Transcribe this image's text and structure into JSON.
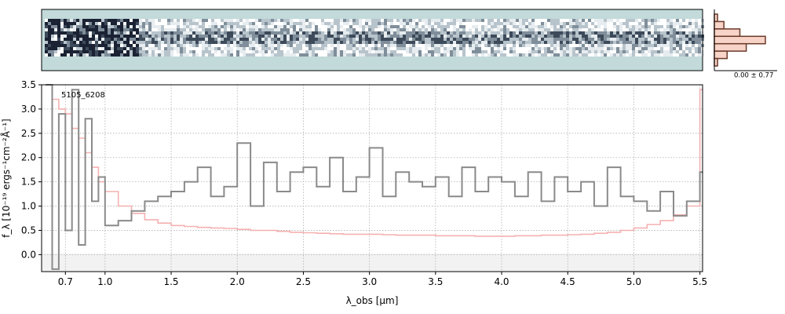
{
  "figure": {
    "object_id": "5105_6208",
    "hist_label": "0.00 ± 0.77"
  },
  "chart_data": {
    "type": "line",
    "xlabel": "λ_obs [μm]",
    "ylabel": "f_λ [10⁻¹⁹ ergs⁻¹cm⁻²Å⁻¹]",
    "xlim": [
      0.52,
      5.52
    ],
    "ylim": [
      -0.35,
      3.5
    ],
    "x_ticks": [
      0.7,
      1.0,
      1.5,
      2.0,
      2.5,
      3.0,
      3.5,
      4.0,
      4.5,
      5.0,
      5.5
    ],
    "x_tick_labels": [
      "0.7",
      "1.0",
      "1.5",
      "2.0",
      "2.5",
      "3.0",
      "3.5",
      "4.0",
      "4.5",
      "5.0",
      "5.5"
    ],
    "y_ticks": [
      0.0,
      0.5,
      1.0,
      1.5,
      2.0,
      2.5,
      3.0,
      3.5
    ],
    "y_tick_labels": [
      "0.0",
      "0.5",
      "1.0",
      "1.5",
      "2.0",
      "2.5",
      "3.0",
      "3.5"
    ],
    "grid": true,
    "series": [
      {
        "role": "flux",
        "color": "#8a8a8a",
        "x": [
          0.55,
          0.6,
          0.65,
          0.7,
          0.75,
          0.8,
          0.85,
          0.9,
          0.95,
          1.0,
          1.1,
          1.2,
          1.3,
          1.4,
          1.5,
          1.6,
          1.7,
          1.8,
          1.9,
          2.0,
          2.1,
          2.2,
          2.3,
          2.4,
          2.5,
          2.6,
          2.7,
          2.8,
          2.9,
          3.0,
          3.1,
          3.2,
          3.3,
          3.4,
          3.5,
          3.6,
          3.7,
          3.8,
          3.9,
          4.0,
          4.1,
          4.2,
          4.3,
          4.4,
          4.5,
          4.6,
          4.7,
          4.8,
          4.9,
          5.0,
          5.1,
          5.2,
          5.3,
          5.4,
          5.5
        ],
        "y": [
          3.5,
          -0.3,
          2.9,
          0.5,
          3.4,
          0.2,
          2.8,
          1.1,
          1.6,
          0.6,
          0.7,
          0.9,
          1.1,
          1.2,
          1.3,
          1.5,
          1.8,
          1.2,
          1.4,
          2.3,
          1.0,
          1.9,
          1.3,
          1.7,
          1.8,
          1.4,
          2.0,
          1.3,
          1.6,
          2.2,
          1.2,
          1.7,
          1.5,
          1.4,
          1.6,
          1.2,
          1.8,
          1.3,
          1.6,
          1.5,
          1.2,
          1.7,
          1.1,
          1.6,
          1.3,
          1.5,
          1.0,
          1.8,
          1.2,
          1.1,
          0.9,
          1.3,
          0.8,
          1.1,
          1.7
        ]
      },
      {
        "role": "error",
        "color": "#f4a8a8",
        "x": [
          0.55,
          0.6,
          0.65,
          0.7,
          0.75,
          0.8,
          0.85,
          0.9,
          0.95,
          1.0,
          1.1,
          1.2,
          1.3,
          1.4,
          1.5,
          1.6,
          1.7,
          1.8,
          1.9,
          2.0,
          2.1,
          2.2,
          2.3,
          2.4,
          2.5,
          2.6,
          2.7,
          2.8,
          2.9,
          3.0,
          3.1,
          3.2,
          3.3,
          3.4,
          3.5,
          3.6,
          3.7,
          3.8,
          3.9,
          4.0,
          4.1,
          4.2,
          4.3,
          4.4,
          4.5,
          4.6,
          4.7,
          4.8,
          4.9,
          5.0,
          5.1,
          5.2,
          5.3,
          5.4,
          5.5
        ],
        "y": [
          3.5,
          3.2,
          3.0,
          2.9,
          2.6,
          2.4,
          2.1,
          1.8,
          1.5,
          1.3,
          1.0,
          0.85,
          0.72,
          0.65,
          0.6,
          0.58,
          0.56,
          0.55,
          0.54,
          0.52,
          0.5,
          0.5,
          0.48,
          0.46,
          0.45,
          0.44,
          0.43,
          0.42,
          0.42,
          0.42,
          0.41,
          0.4,
          0.4,
          0.4,
          0.39,
          0.39,
          0.39,
          0.38,
          0.38,
          0.38,
          0.39,
          0.39,
          0.4,
          0.4,
          0.41,
          0.42,
          0.44,
          0.46,
          0.5,
          0.55,
          0.62,
          0.7,
          0.82,
          1.0,
          3.4
        ]
      }
    ],
    "histogram": {
      "bins": [
        -3,
        -2,
        -1,
        0,
        1,
        2,
        3
      ],
      "counts": [
        1,
        3,
        8,
        16,
        10,
        4,
        1
      ]
    }
  }
}
